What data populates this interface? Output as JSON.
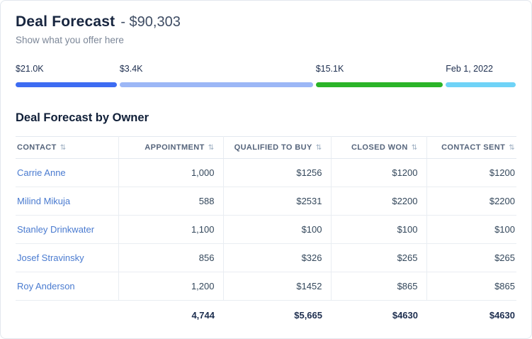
{
  "card": {
    "title": "Deal Forecast",
    "amount": "- $90,303",
    "subtitle": "Show what you offer here"
  },
  "progress": {
    "segments": [
      {
        "label": "$21.0K",
        "value": "$21.0K",
        "color": "#3d6cf2",
        "width_pct": 20.2
      },
      {
        "label": "$3.4K",
        "value": "$3.4K",
        "color": "#9cb7f6",
        "width_pct": 38.6
      },
      {
        "label": "$15.1K",
        "value": "$15.1K",
        "color": "#2bb428",
        "width_pct": 25.4
      },
      {
        "label": "Feb 1, 2022",
        "value": "Feb 1, 2022",
        "color": "#6fd3f7",
        "width_pct": 14.0
      }
    ]
  },
  "table": {
    "title": "Deal Forecast by Owner",
    "sort_icon": "⇅",
    "columns": [
      "CONTACT",
      "APPOINTMENT",
      "QUALIFIED TO BUY",
      "CLOSED WON",
      "CONTACT SENT"
    ],
    "rows": [
      {
        "contact": "Carrie Anne",
        "values": [
          "1,000",
          "$1256",
          "$1200",
          "$1200"
        ]
      },
      {
        "contact": "Milind Mikuja",
        "values": [
          "588",
          "$2531",
          "$2200",
          "$2200"
        ]
      },
      {
        "contact": "Stanley Drinkwater",
        "values": [
          "1,100",
          "$100",
          "$100",
          "$100"
        ]
      },
      {
        "contact": "Josef Stravinsky",
        "values": [
          "856",
          "$326",
          "$265",
          "$265"
        ]
      },
      {
        "contact": "Roy Anderson",
        "values": [
          "1,200",
          "$1452",
          "$865",
          "$865"
        ]
      }
    ],
    "totals": [
      "4,744",
      "$5,665",
      "$4630",
      "$4630"
    ]
  }
}
